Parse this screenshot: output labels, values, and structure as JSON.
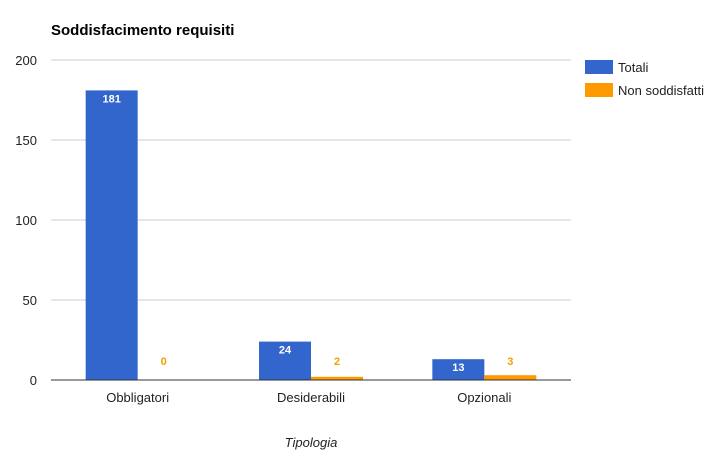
{
  "chart_data": {
    "type": "bar",
    "title": "Soddisfacimento requisiti",
    "xlabel": "Tipologia",
    "ylabel": "",
    "categories": [
      "Obbligatori",
      "Desiderabili",
      "Opzionali"
    ],
    "series": [
      {
        "name": "Totali",
        "values": [
          181,
          24,
          13
        ],
        "color": "#3366cc",
        "label_color": "#ffffff"
      },
      {
        "name": "Non soddisfatti",
        "values": [
          0,
          2,
          3
        ],
        "color": "#ff9900",
        "label_color": "#f0a000"
      }
    ],
    "ylim": [
      0,
      200
    ],
    "yticks": [
      0,
      50,
      100,
      150,
      200
    ],
    "grid": true,
    "legend_position": "right"
  }
}
